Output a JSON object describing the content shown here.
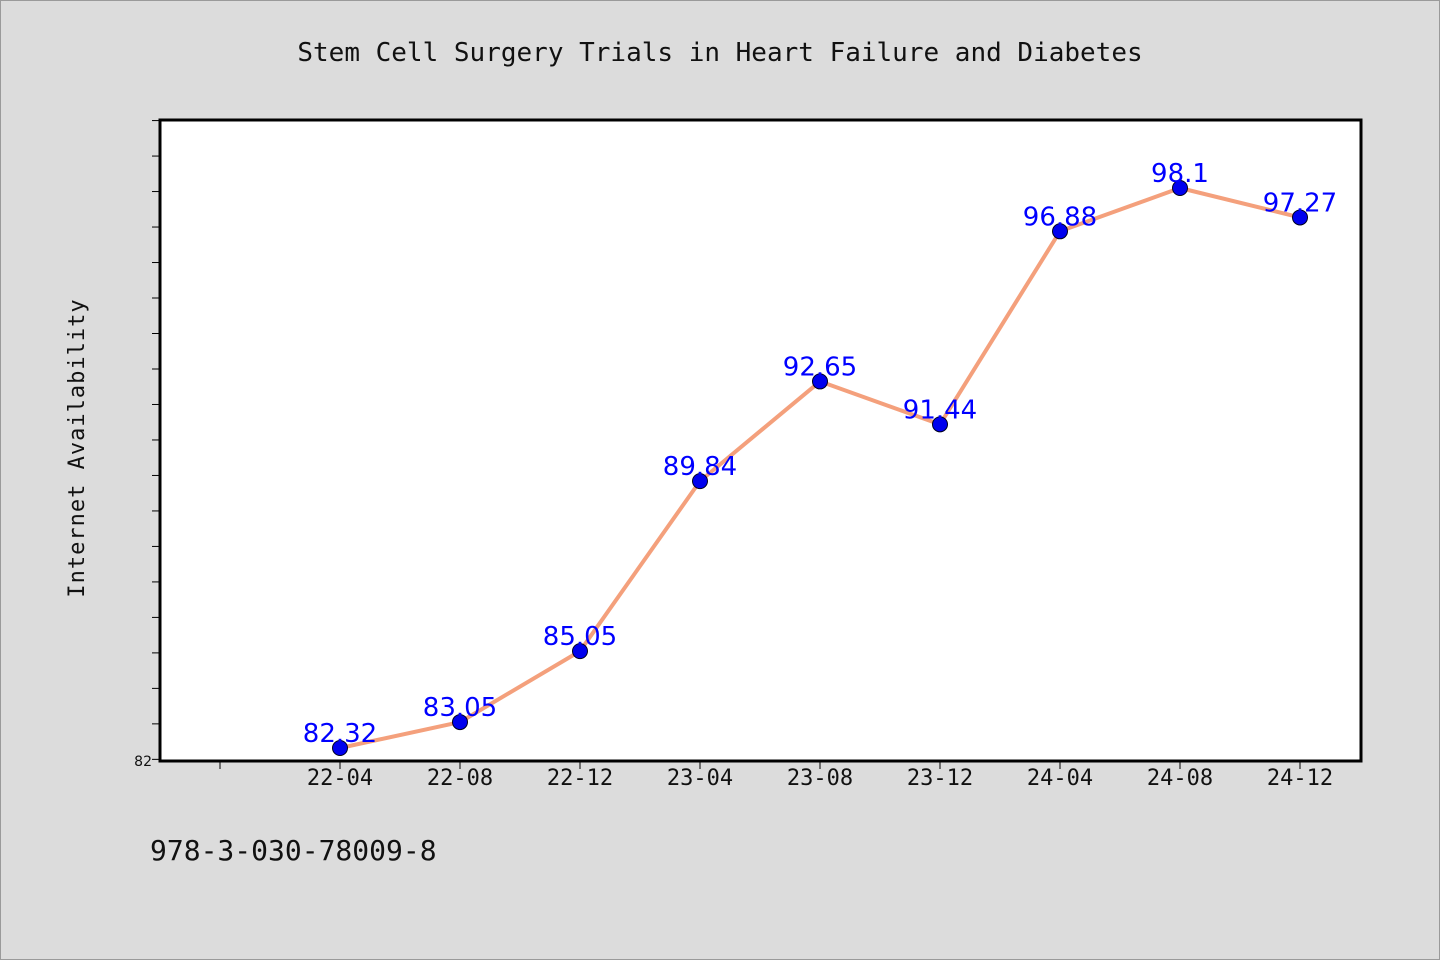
{
  "chart_data": {
    "type": "line",
    "title": "Stem Cell Surgery Trials in Heart Failure and Diabetes",
    "xlabel": "",
    "ylabel": "Internet Availability",
    "categories": [
      "22-04",
      "22-08",
      "22-12",
      "23-04",
      "23-08",
      "23-12",
      "24-04",
      "24-08",
      "24-12"
    ],
    "series": [
      {
        "values": [
          82.32,
          83.05,
          85.05,
          89.84,
          92.65,
          91.44,
          96.88,
          98.1,
          97.27
        ],
        "labels": [
          "82.32",
          "83.05",
          "85.05",
          "89.84",
          "92.65",
          "91.44",
          "96.88",
          "98.1",
          "97.27"
        ],
        "line_color": "#f4a07c",
        "marker_color": "#0000ee",
        "label_color": "#0000ff"
      }
    ],
    "y_tick_labels": [
      "82"
    ],
    "ylim": [
      82,
      100
    ],
    "grid": false,
    "legend": "none"
  },
  "footer": {
    "isbn": "978-3-030-78009-8"
  }
}
